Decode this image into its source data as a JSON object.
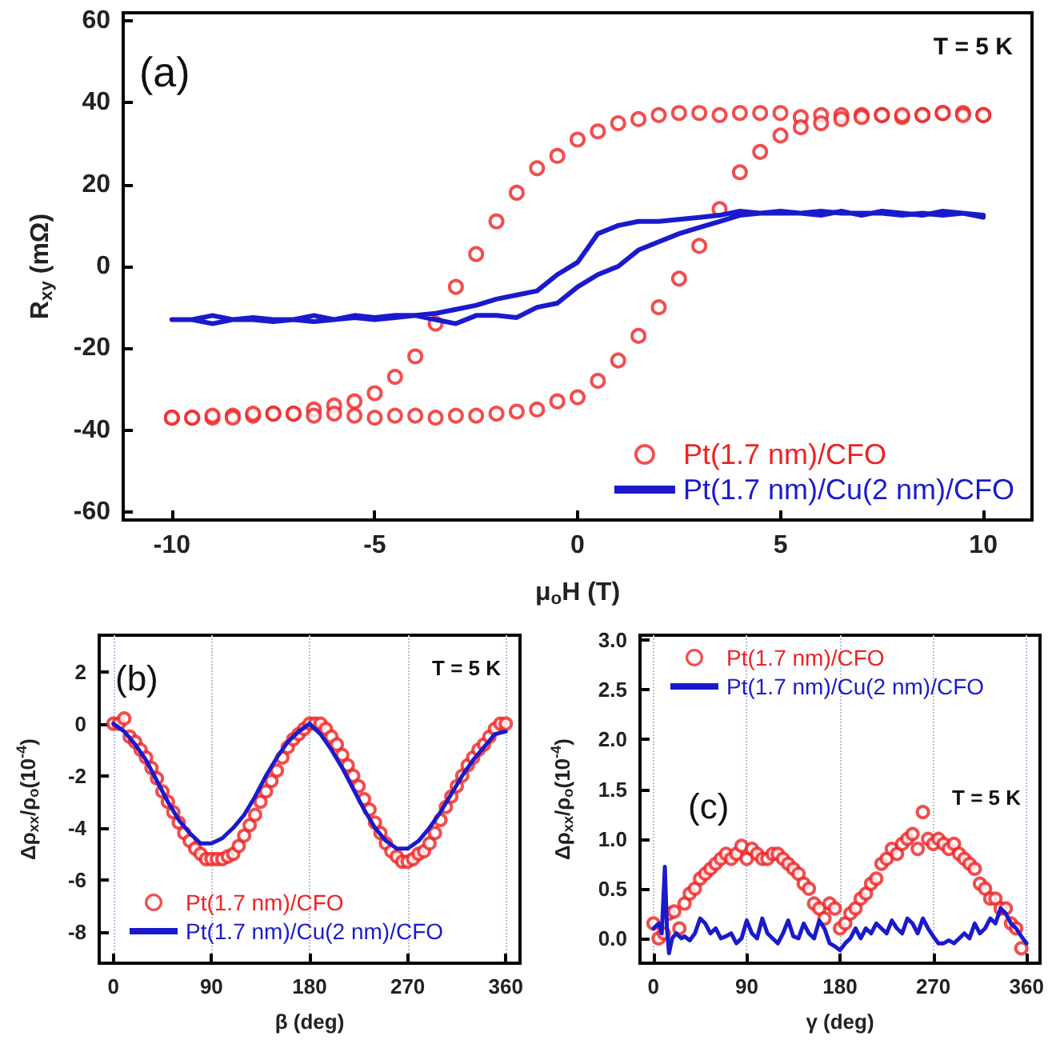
{
  "chart_data": [
    {
      "type": "scatter",
      "xlabel": "μ$_{o}$H (T)",
      "ylabel": "R$_{xy}$ (mΩ)",
      "xlim": [
        -11.2,
        11.2
      ],
      "ylim": [
        -62,
        62
      ],
      "xticks": [
        -10,
        -5,
        0,
        5,
        10
      ],
      "yticks": [
        -60,
        -40,
        -20,
        0,
        20,
        40,
        60
      ],
      "legend": "bottom right",
      "annotations": [
        "(a)",
        "T = 5 K"
      ],
      "series": [
        {
          "name": "Pt(1.7 nm)/CFO",
          "color": "#ee2222",
          "marker": "circle",
          "x": [
            10,
            9.5,
            9,
            8.5,
            8,
            7.5,
            7,
            6.5,
            6,
            5.5,
            5,
            4.5,
            4,
            3.5,
            3,
            2.5,
            2,
            1.5,
            1,
            0.5,
            0,
            -0.5,
            -1,
            -1.5,
            -2,
            -2.5,
            -3,
            -3.5,
            -4,
            -4.5,
            -5,
            -5.5,
            -6,
            -6.5,
            -7,
            -7.5,
            -8,
            -8.5,
            -9,
            -9.5,
            -10,
            -10,
            -9.5,
            -9,
            -8.5,
            -8,
            -7.5,
            -7,
            -6.5,
            -6,
            -5.5,
            -5,
            -4.5,
            -4,
            -3.5,
            -3,
            -2.5,
            -2,
            -1.5,
            -1,
            -0.5,
            0,
            0.5,
            1,
            1.5,
            2,
            2.5,
            3,
            3.5,
            4,
            4.5,
            5,
            5.5,
            6,
            6.5,
            7,
            7.5,
            8,
            8.5,
            9,
            9.5,
            10
          ],
          "values": [
            37,
            37.5,
            37.5,
            37,
            36.5,
            37,
            37,
            37,
            37,
            36.5,
            37.5,
            37.5,
            37.5,
            37,
            37.5,
            37.5,
            37,
            36,
            35,
            33,
            31,
            27,
            24,
            18,
            11,
            3,
            -5,
            -14,
            -22,
            -27,
            -31,
            -33,
            -34,
            -35,
            -36,
            -36,
            -36.5,
            -36.5,
            -37,
            -37,
            -37,
            -37,
            -37,
            -36.5,
            -37,
            -36,
            -36,
            -36,
            -36.5,
            -36,
            -36.5,
            -37,
            -36.5,
            -36.5,
            -37,
            -36.5,
            -36.5,
            -36,
            -35.5,
            -35,
            -33,
            -32,
            -28,
            -23,
            -17,
            -10,
            -3,
            5,
            14,
            23,
            28,
            32,
            34,
            35,
            36,
            36.5,
            37,
            37,
            37,
            37.5,
            37,
            37
          ]
        },
        {
          "name": "Pt(1.7 nm)/Cu(2 nm)/CFO",
          "type": "line",
          "marker": "none",
          "color": "#1a1acc",
          "x": [
            10,
            9.5,
            9,
            8.5,
            8,
            7.5,
            7,
            6.5,
            6,
            5.5,
            5,
            4.5,
            4,
            3.5,
            3,
            2.5,
            2,
            1.5,
            1,
            0.5,
            0,
            -0.5,
            -1,
            -1.5,
            -2,
            -2.5,
            -3,
            -3.5,
            -4,
            -4.5,
            -5,
            -5.5,
            -6,
            -6.5,
            -7,
            -7.5,
            -8,
            -8.5,
            -9,
            -9.5,
            -10,
            -10,
            -9.5,
            -9,
            -8.5,
            -8,
            -7.5,
            -7,
            -6.5,
            -6,
            -5.5,
            -5,
            -4.5,
            -4,
            -3.5,
            -3,
            -2.5,
            -2,
            -1.5,
            -1,
            -0.5,
            0,
            0.5,
            1,
            1.5,
            2,
            2.5,
            3,
            3.5,
            4,
            4.5,
            5,
            5.5,
            6,
            6.5,
            7,
            7.5,
            8,
            8.5,
            9,
            9.5,
            10
          ],
          "values": [
            12.5,
            13,
            13.5,
            12.5,
            13,
            13.5,
            12.5,
            13.5,
            12.5,
            13,
            13,
            13,
            13.5,
            12.5,
            12,
            11.5,
            11,
            11,
            10,
            8,
            1,
            -2,
            -6,
            -7,
            -8,
            -9.5,
            -10.5,
            -11.5,
            -12,
            -12,
            -12.5,
            -12,
            -13,
            -12,
            -13,
            -13,
            -12.5,
            -13,
            -12,
            -13,
            -13,
            -13,
            -13,
            -14,
            -13,
            -13,
            -13.5,
            -13,
            -13.5,
            -13,
            -12.5,
            -13,
            -12.5,
            -12,
            -13,
            -14,
            -12,
            -12,
            -12.5,
            -10,
            -9,
            -5,
            -2,
            0,
            4,
            6,
            8,
            9.5,
            11,
            12.5,
            13,
            13.5,
            13,
            13.5,
            13,
            13,
            13,
            12.5,
            13,
            12.5,
            13,
            12
          ]
        }
      ]
    },
    {
      "type": "scatter",
      "xlabel": "β (deg)",
      "ylabel": "Δρ$_{xx}$/ρ$_{o}$(10$^{-4}$)",
      "xlim": [
        -13,
        373
      ],
      "ylim": [
        -9.2,
        3.4
      ],
      "xticks": [
        0,
        90,
        180,
        270,
        360
      ],
      "yticks": [
        -8,
        -6,
        -4,
        -2,
        0,
        2
      ],
      "grid": "x",
      "legend": "bottom left",
      "annotations": [
        "(b)",
        "T = 5 K"
      ],
      "series": [
        {
          "name": "Pt(1.7 nm)/CFO",
          "color": "#ee2222",
          "marker": "circle",
          "x": [
            0,
            5,
            10,
            15,
            20,
            25,
            30,
            35,
            40,
            45,
            50,
            55,
            60,
            65,
            70,
            75,
            80,
            85,
            90,
            95,
            100,
            105,
            110,
            115,
            120,
            125,
            130,
            135,
            140,
            145,
            150,
            155,
            160,
            165,
            170,
            175,
            180,
            185,
            190,
            195,
            200,
            205,
            210,
            215,
            220,
            225,
            230,
            235,
            240,
            245,
            250,
            255,
            260,
            265,
            270,
            275,
            280,
            285,
            290,
            295,
            300,
            305,
            310,
            315,
            320,
            325,
            330,
            335,
            340,
            345,
            350,
            355,
            360
          ],
          "values": [
            0,
            0,
            0.2,
            -0.5,
            -0.7,
            -1,
            -1.3,
            -1.7,
            -2.1,
            -2.6,
            -3,
            -3.4,
            -3.8,
            -4.2,
            -4.5,
            -4.8,
            -5,
            -5.2,
            -5.2,
            -5.2,
            -5.2,
            -5.1,
            -5,
            -4.7,
            -4.3,
            -3.9,
            -3.5,
            -3,
            -2.6,
            -2.2,
            -1.8,
            -1.3,
            -0.9,
            -0.6,
            -0.4,
            -0.2,
            0,
            0,
            0,
            -0.2,
            -0.5,
            -0.8,
            -1.2,
            -1.6,
            -2,
            -2.4,
            -2.9,
            -3.3,
            -3.8,
            -4.2,
            -4.6,
            -4.9,
            -5.1,
            -5.3,
            -5.3,
            -5.2,
            -5,
            -4.9,
            -4.6,
            -4.2,
            -3.7,
            -3.2,
            -2.8,
            -2.4,
            -2,
            -1.6,
            -1.3,
            -1,
            -0.8,
            -0.5,
            -0.2,
            0,
            0
          ]
        },
        {
          "name": "Pt(1.7 nm)/Cu(2 nm)/CFO",
          "type": "line",
          "marker": "none",
          "color": "#1a1acc",
          "x": [
            0,
            10,
            20,
            30,
            40,
            50,
            60,
            70,
            80,
            90,
            100,
            110,
            120,
            130,
            140,
            150,
            160,
            170,
            180,
            190,
            200,
            210,
            220,
            230,
            240,
            250,
            260,
            270,
            280,
            290,
            300,
            310,
            320,
            330,
            340,
            350,
            360
          ],
          "values": [
            0,
            -0.3,
            -0.8,
            -1.4,
            -2.2,
            -3,
            -3.7,
            -4.2,
            -4.6,
            -4.6,
            -4.4,
            -4,
            -3.5,
            -2.8,
            -2,
            -1.3,
            -0.7,
            -0.3,
            0,
            -0.4,
            -1,
            -1.7,
            -2.5,
            -3.3,
            -4,
            -4.5,
            -4.8,
            -4.8,
            -4.5,
            -4,
            -3.4,
            -2.7,
            -2,
            -1.4,
            -0.9,
            -0.4,
            -0.3
          ]
        }
      ]
    },
    {
      "type": "scatter",
      "xlabel": "γ (deg)",
      "ylabel": "Δρ$_{xx}$/ρ$_{o}$(10$^{-4}$)",
      "xlim": [
        -13,
        373
      ],
      "ylim": [
        -0.25,
        3.05
      ],
      "xticks": [
        0,
        90,
        180,
        270,
        360
      ],
      "yticks": [
        {
          "value": 0,
          "label": "0.0"
        },
        0.5,
        {
          "value": 1,
          "label": "1.0"
        },
        1.5,
        {
          "value": 2,
          "label": "2.0"
        },
        2.5,
        {
          "value": 3,
          "label": "3.0"
        }
      ],
      "grid": "x",
      "legend": "top left",
      "annotations": [
        "(c)",
        "T = 5 K"
      ],
      "series": [
        {
          "name": "Pt(1.7 nm)/CFO",
          "color": "#ee2222",
          "marker": "circle",
          "x": [
            0,
            5,
            10,
            15,
            20,
            25,
            30,
            35,
            40,
            45,
            50,
            55,
            60,
            65,
            70,
            75,
            80,
            85,
            90,
            95,
            100,
            105,
            110,
            115,
            120,
            125,
            130,
            135,
            140,
            145,
            150,
            155,
            160,
            165,
            170,
            175,
            180,
            185,
            190,
            195,
            200,
            205,
            210,
            215,
            220,
            225,
            230,
            235,
            240,
            245,
            250,
            255,
            260,
            265,
            270,
            275,
            280,
            285,
            290,
            295,
            300,
            305,
            310,
            315,
            320,
            325,
            330,
            335,
            340,
            345,
            350,
            355
          ],
          "values": [
            0.15,
            0,
            0.05,
            0.25,
            0.27,
            0.1,
            0.35,
            0.45,
            0.5,
            0.6,
            0.65,
            0.7,
            0.75,
            0.8,
            0.85,
            0.8,
            0.85,
            0.93,
            0.8,
            0.9,
            0.85,
            0.8,
            0.8,
            0.85,
            0.85,
            0.8,
            0.75,
            0.7,
            0.65,
            0.55,
            0.5,
            0.35,
            0.3,
            0.2,
            0.35,
            0.3,
            0.1,
            0.15,
            0.25,
            0.3,
            0.4,
            0.45,
            0.55,
            0.6,
            0.75,
            0.8,
            0.9,
            0.85,
            0.95,
            1,
            1.05,
            0.9,
            1.27,
            1,
            0.95,
            1,
            0.95,
            0.9,
            0.95,
            0.85,
            0.8,
            0.75,
            0.7,
            0.55,
            0.5,
            0.4,
            0.4,
            0.3,
            0.3,
            0.15,
            0.1,
            -0.1
          ]
        },
        {
          "name": "Pt(1.7 nm)/Cu(2 nm)/CFO",
          "type": "line",
          "marker": "none",
          "color": "#1a1acc",
          "x": [
            0,
            5,
            8,
            11,
            13,
            15,
            18,
            22,
            27,
            30,
            35,
            40,
            45,
            50,
            55,
            60,
            65,
            70,
            75,
            80,
            85,
            90,
            95,
            100,
            105,
            110,
            115,
            120,
            125,
            130,
            135,
            140,
            145,
            150,
            155,
            160,
            165,
            170,
            175,
            180,
            185,
            190,
            195,
            200,
            205,
            210,
            215,
            220,
            225,
            230,
            235,
            240,
            245,
            250,
            255,
            260,
            265,
            270,
            275,
            280,
            285,
            290,
            295,
            300,
            305,
            310,
            315,
            320,
            325,
            330,
            335,
            340,
            345,
            350,
            355,
            360
          ],
          "values": [
            0.1,
            0.15,
            0.05,
            0.72,
            0.1,
            -0.15,
            0,
            0.05,
            0,
            0.02,
            -0.02,
            0.05,
            0.2,
            0.15,
            0.05,
            0.1,
            0,
            0.02,
            0.05,
            -0.05,
            0,
            0.18,
            0.05,
            0,
            0.2,
            0.05,
            0,
            -0.05,
            0.05,
            0.18,
            0.02,
            0,
            0.15,
            0.05,
            0,
            0.18,
            0.1,
            -0.05,
            -0.08,
            -0.12,
            -0.05,
            0,
            0.1,
            0,
            0.1,
            0.05,
            0.15,
            0.1,
            0.05,
            0.18,
            0.1,
            0.05,
            0.2,
            0.15,
            0.05,
            0.2,
            0.1,
            0.02,
            -0.05,
            -0.05,
            -0.02,
            -0.05,
            0,
            0.05,
            0,
            0.15,
            0.05,
            0.1,
            0.2,
            0.15,
            0.3,
            0.25,
            0.15,
            0.1,
            0.02,
            -0.05
          ]
        }
      ]
    }
  ]
}
